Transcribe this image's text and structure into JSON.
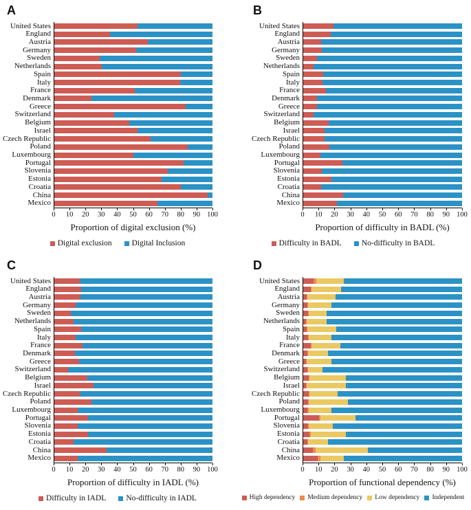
{
  "colors": {
    "red": "#CD5C55",
    "blue": "#2B92C6",
    "yellow": "#EAC963",
    "orange": "#F0894E",
    "axis": "#000000"
  },
  "countries": [
    "United States",
    "England",
    "Austria",
    "Germany",
    "Sweden",
    "Netherlands",
    "Spain",
    "Italy",
    "France",
    "Denmark",
    "Greece",
    "Switzerland",
    "Belgium",
    "Israel",
    "Czech Republic",
    "Poland",
    "Luxembourg",
    "Portugal",
    "Slovenia",
    "Estonia",
    "Croatia",
    "China",
    "Mexico"
  ],
  "chart_data": [
    {
      "panel": "A",
      "type": "bar",
      "orientation": "horizontal-stacked",
      "xlabel": "Proportion of digital exclusion (%)",
      "xlim": [
        0,
        100
      ],
      "xticks": [
        0,
        10,
        20,
        30,
        40,
        50,
        60,
        70,
        80,
        90,
        100
      ],
      "legend_position": "bottom",
      "grid": false,
      "categories": [
        "United States",
        "England",
        "Austria",
        "Germany",
        "Sweden",
        "Netherlands",
        "Spain",
        "Italy",
        "France",
        "Denmark",
        "Greece",
        "Switzerland",
        "Belgium",
        "Israel",
        "Czech Republic",
        "Poland",
        "Luxembourg",
        "Portugal",
        "Slovenia",
        "Estonia",
        "Croatia",
        "China",
        "Mexico"
      ],
      "series": [
        {
          "name": "Digital exclusion",
          "color": "#CD5C55",
          "values": [
            53,
            35.5,
            59.5,
            52,
            29,
            30.5,
            80,
            79.5,
            51,
            24,
            83,
            38,
            47.5,
            53,
            61,
            84.5,
            50,
            82,
            72,
            68,
            80,
            97,
            65.5
          ]
        },
        {
          "name": "Digital Inclusion",
          "color": "#2B92C6",
          "values": [
            47,
            64.5,
            40.5,
            48,
            71,
            69.5,
            20,
            20.5,
            49,
            76,
            17,
            62,
            52.5,
            47,
            39,
            15.5,
            50,
            18,
            28,
            32,
            20,
            3,
            34.5
          ]
        }
      ]
    },
    {
      "panel": "B",
      "type": "bar",
      "orientation": "horizontal-stacked",
      "xlabel": "Proportion of difficulty in BADL (%)",
      "xlim": [
        0,
        100
      ],
      "xticks": [
        0,
        10,
        20,
        30,
        40,
        50,
        60,
        70,
        80,
        90,
        100
      ],
      "legend_position": "bottom",
      "grid": false,
      "categories": [
        "United States",
        "England",
        "Austria",
        "Germany",
        "Sweden",
        "Netherlands",
        "Spain",
        "Italy",
        "France",
        "Denmark",
        "Greece",
        "Switzerland",
        "Belgium",
        "Israel",
        "Czech Republic",
        "Poland",
        "Luxembourg",
        "Portugal",
        "Slovenia",
        "Estonia",
        "Croatia",
        "China",
        "Mexico"
      ],
      "series": [
        {
          "name": "Difficulty in BADL",
          "color": "#CD5C55",
          "values": [
            19.5,
            17.5,
            11.5,
            12,
            9,
            7,
            13,
            12.5,
            14.5,
            9,
            9,
            7,
            16.5,
            14,
            14,
            17,
            11,
            25,
            12,
            18,
            11.5,
            25.5,
            21.5
          ]
        },
        {
          "name": "No-difficulty in BADL",
          "color": "#2B92C6",
          "values": [
            80.5,
            82.5,
            88.5,
            88,
            91,
            93,
            87,
            87.5,
            85.5,
            91,
            91,
            93,
            83.5,
            86,
            86,
            83,
            89,
            75,
            88,
            82,
            88.5,
            74.5,
            78.5
          ]
        }
      ]
    },
    {
      "panel": "C",
      "type": "bar",
      "orientation": "horizontal-stacked",
      "xlabel": "Proportion of difficulty in IADL (%)",
      "xlim": [
        0,
        100
      ],
      "xticks": [
        0,
        10,
        20,
        30,
        40,
        50,
        60,
        70,
        80,
        90,
        100
      ],
      "legend_position": "bottom",
      "grid": false,
      "categories": [
        "United States",
        "England",
        "Austria",
        "Germany",
        "Sweden",
        "Netherlands",
        "Spain",
        "Italy",
        "France",
        "Denmark",
        "Greece",
        "Switzerland",
        "Belgium",
        "Israel",
        "Czech Republic",
        "Poland",
        "Luxembourg",
        "Portugal",
        "Slovenia",
        "Estonia",
        "Croatia",
        "China",
        "Mexico"
      ],
      "series": [
        {
          "name": "Difficulty in IADL",
          "color": "#CD5C55",
          "values": [
            16.5,
            17.5,
            17,
            14,
            11,
            12.5,
            17.5,
            14,
            18,
            13.5,
            16,
            9,
            21,
            25,
            16.5,
            24,
            15,
            21.5,
            15,
            21.5,
            12.5,
            33.5,
            15
          ]
        },
        {
          "name": "No-difficulty in IADL",
          "color": "#2B92C6",
          "values": [
            83.5,
            82.5,
            83,
            86,
            89,
            87.5,
            82.5,
            86,
            82,
            86.5,
            84,
            91,
            79,
            75,
            83.5,
            76,
            85,
            78.5,
            85,
            78.5,
            87.5,
            66.5,
            85
          ]
        }
      ]
    },
    {
      "panel": "D",
      "type": "bar",
      "orientation": "horizontal-stacked",
      "xlabel": "Proportion of functional dependency (%)",
      "xlim": [
        0,
        100
      ],
      "xticks": [
        0,
        10,
        20,
        30,
        40,
        50,
        60,
        70,
        80,
        90,
        100
      ],
      "legend_position": "bottom",
      "grid": false,
      "categories": [
        "United States",
        "England",
        "Austria",
        "Germany",
        "Sweden",
        "Netherlands",
        "Spain",
        "Italy",
        "France",
        "Denmark",
        "Greece",
        "Switzerland",
        "Belgium",
        "Israel",
        "Czech Republic",
        "Poland",
        "Luxembourg",
        "Portugal",
        "Slovenia",
        "Estonia",
        "Croatia",
        "China",
        "Mexico"
      ],
      "series": [
        {
          "name": "High dependency",
          "color": "#CD5C55",
          "values": [
            7,
            5,
            2.5,
            3,
            3.5,
            2,
            2.5,
            3.5,
            5,
            3,
            2,
            3,
            4,
            2,
            4,
            3.5,
            3,
            10.5,
            3.5,
            4.5,
            3,
            6.5,
            9.5
          ]
        },
        {
          "name": "Medium dependency",
          "color": "#F0894E",
          "values": [
            1.5,
            0.5,
            0.5,
            0.5,
            0.5,
            0.5,
            0.5,
            0.5,
            0.5,
            0.5,
            0.5,
            0.5,
            0.5,
            0.5,
            0.5,
            0.5,
            1,
            0.5,
            0.5,
            0.5,
            0.5,
            1.5,
            1.5
          ]
        },
        {
          "name": "Low dependency",
          "color": "#EAC963",
          "values": [
            17.5,
            18.5,
            17.5,
            14.5,
            11,
            12.5,
            18,
            14,
            18,
            12.5,
            15.5,
            9,
            22.5,
            24.5,
            17.5,
            24.5,
            14,
            22,
            15,
            22,
            12.5,
            33,
            15
          ]
        },
        {
          "name": "Independent",
          "color": "#2B92C6",
          "values": [
            74,
            76,
            79.5,
            82,
            85,
            85,
            79,
            82,
            76.5,
            84,
            82,
            87.5,
            73,
            73,
            78,
            71.5,
            82,
            67,
            81,
            73,
            84,
            59,
            74
          ]
        }
      ]
    }
  ]
}
